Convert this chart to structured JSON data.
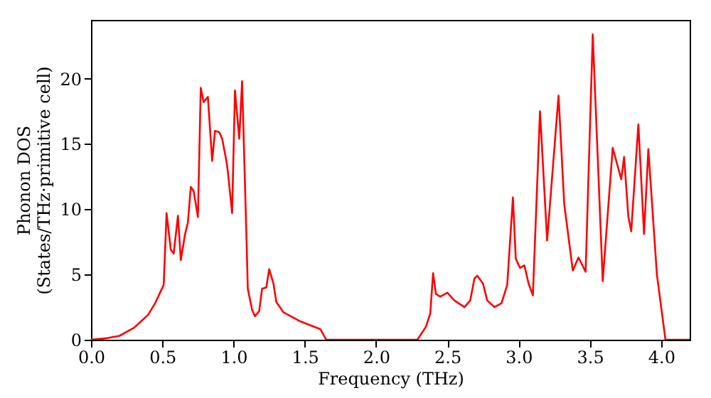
{
  "chart_data": {
    "type": "line",
    "xlabel": "Frequency (THz)",
    "ylabel": "Phonon DOS\n(States/THz·primitive cell)",
    "xlim": [
      0,
      4.2
    ],
    "xticks": [
      {
        "value": 0,
        "label": "0.0"
      },
      0.5,
      {
        "value": 1,
        "label": "1.0"
      },
      1.5,
      {
        "value": 2,
        "label": "2.0"
      },
      2.5,
      {
        "value": 3,
        "label": "3.0"
      },
      3.5,
      {
        "value": 4,
        "label": "4.0"
      }
    ],
    "ylim": [
      0,
      24.5
    ],
    "yticks": [
      0,
      5,
      10,
      15,
      20
    ],
    "grid": false,
    "marker": "none",
    "line_style": "solid",
    "series": [
      {
        "color": "#ff0000",
        "x": [
          0.0,
          0.1,
          0.2,
          0.3,
          0.4,
          0.45,
          0.51,
          0.53,
          0.56,
          0.58,
          0.61,
          0.63,
          0.66,
          0.68,
          0.7,
          0.72,
          0.75,
          0.77,
          0.79,
          0.82,
          0.85,
          0.87,
          0.9,
          0.92,
          0.95,
          0.96,
          0.99,
          1.01,
          1.04,
          1.06,
          1.09,
          1.1,
          1.13,
          1.15,
          1.18,
          1.2,
          1.23,
          1.25,
          1.28,
          1.3,
          1.35,
          1.47,
          1.61,
          1.65,
          2.29,
          2.35,
          2.38,
          2.4,
          2.42,
          2.45,
          2.5,
          2.55,
          2.62,
          2.66,
          2.69,
          2.71,
          2.75,
          2.78,
          2.83,
          2.88,
          2.92,
          2.96,
          2.98,
          3.01,
          3.04,
          3.07,
          3.1,
          3.15,
          3.2,
          3.28,
          3.32,
          3.38,
          3.42,
          3.47,
          3.52,
          3.59,
          3.66,
          3.72,
          3.74,
          3.77,
          3.79,
          3.84,
          3.88,
          3.91,
          3.97,
          4.03,
          4.2
        ],
        "values": [
          0.0,
          0.1,
          0.3,
          0.9,
          1.9,
          2.8,
          4.2,
          9.7,
          6.9,
          6.6,
          9.5,
          6.1,
          8.1,
          9.0,
          11.7,
          11.4,
          9.4,
          19.3,
          18.2,
          18.6,
          13.7,
          16.0,
          15.9,
          15.4,
          13.7,
          12.9,
          9.7,
          19.1,
          15.4,
          19.8,
          8.1,
          3.9,
          2.3,
          1.8,
          2.2,
          3.9,
          4.0,
          5.4,
          4.3,
          2.9,
          2.1,
          1.4,
          0.8,
          0.0,
          0.0,
          1.0,
          2.0,
          5.1,
          3.5,
          3.3,
          3.6,
          3.0,
          2.5,
          3.0,
          4.7,
          4.9,
          4.3,
          3.0,
          2.5,
          2.8,
          4.2,
          10.9,
          6.2,
          5.5,
          5.7,
          4.3,
          3.4,
          17.5,
          7.6,
          18.7,
          10.4,
          5.3,
          6.3,
          5.2,
          23.4,
          4.5,
          14.7,
          12.3,
          14.0,
          9.4,
          8.3,
          16.5,
          8.1,
          14.6,
          5.0,
          0.0,
          0.0
        ]
      }
    ]
  }
}
